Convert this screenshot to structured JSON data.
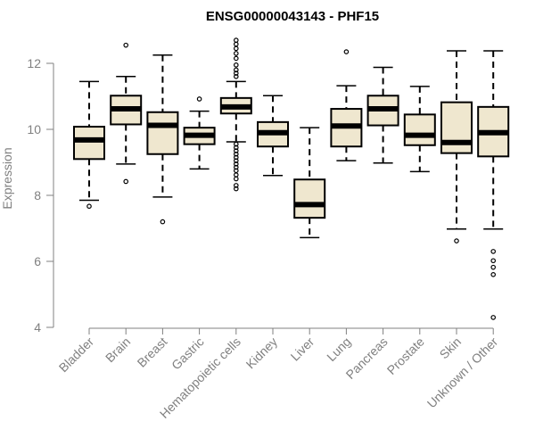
{
  "chart_data": {
    "type": "boxplot",
    "title": "ENSG00000043143 - PHF15",
    "ylabel": "Expression",
    "xlabel": "",
    "ylim": [
      4,
      12.8
    ],
    "yticks": [
      4,
      6,
      8,
      10,
      12
    ],
    "categories": [
      "Bladder",
      "Brain",
      "Breast",
      "Gastric",
      "Hematopoietic cells",
      "Kidney",
      "Liver",
      "Lung",
      "Pancreas",
      "Prostate",
      "Skin",
      "Unknown / Other"
    ],
    "boxes": [
      {
        "min": 7.85,
        "q1": 9.1,
        "median": 9.68,
        "q3": 10.08,
        "max": 11.45,
        "outliers": [
          7.67
        ]
      },
      {
        "min": 8.95,
        "q1": 10.15,
        "median": 10.62,
        "q3": 11.02,
        "max": 11.6,
        "outliers": [
          12.55,
          8.42
        ]
      },
      {
        "min": 7.95,
        "q1": 9.25,
        "median": 10.12,
        "q3": 10.52,
        "max": 12.25,
        "outliers": [
          7.2
        ]
      },
      {
        "min": 8.8,
        "q1": 9.55,
        "median": 9.82,
        "q3": 10.05,
        "max": 10.55,
        "outliers": [
          10.92
        ]
      },
      {
        "min": 9.62,
        "q1": 10.48,
        "median": 10.68,
        "q3": 10.95,
        "max": 11.45,
        "outliers": [
          12.7,
          12.58,
          12.45,
          12.3,
          12.15,
          11.95,
          11.8,
          11.7,
          11.6,
          9.55,
          9.45,
          9.35,
          9.25,
          9.15,
          9.05,
          8.95,
          8.85,
          8.75,
          8.62,
          8.5,
          8.3,
          8.2
        ]
      },
      {
        "min": 8.6,
        "q1": 9.48,
        "median": 9.9,
        "q3": 10.22,
        "max": 11.02,
        "outliers": []
      },
      {
        "min": 6.72,
        "q1": 7.32,
        "median": 7.72,
        "q3": 8.48,
        "max": 10.05,
        "outliers": []
      },
      {
        "min": 9.05,
        "q1": 9.48,
        "median": 10.1,
        "q3": 10.62,
        "max": 11.32,
        "outliers": [
          12.35
        ]
      },
      {
        "min": 8.98,
        "q1": 10.12,
        "median": 10.62,
        "q3": 11.02,
        "max": 11.88,
        "outliers": []
      },
      {
        "min": 8.72,
        "q1": 9.52,
        "median": 9.82,
        "q3": 10.45,
        "max": 11.3,
        "outliers": []
      },
      {
        "min": 6.98,
        "q1": 9.28,
        "median": 9.6,
        "q3": 10.82,
        "max": 12.38,
        "outliers": [
          6.62
        ]
      },
      {
        "min": 6.98,
        "q1": 9.18,
        "median": 9.9,
        "q3": 10.68,
        "max": 12.38,
        "outliers": [
          6.3,
          6.02,
          5.82,
          5.6,
          4.3
        ]
      }
    ]
  }
}
